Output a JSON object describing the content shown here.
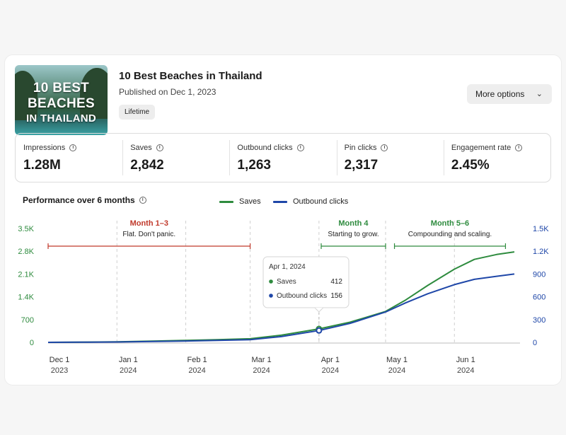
{
  "post": {
    "thumbnail_lines": [
      "10 BEST",
      "BEACHES",
      "IN THAILAND"
    ],
    "title": "10 Best Beaches in Thailand",
    "published": "Published on Dec 1, 2023",
    "range_pill": "Lifetime",
    "more_options": "More options"
  },
  "stats": [
    {
      "label": "Impressions",
      "value": "1.28M"
    },
    {
      "label": "Saves",
      "value": "2,842"
    },
    {
      "label": "Outbound clicks",
      "value": "1,263"
    },
    {
      "label": "Pin clicks",
      "value": "2,317"
    },
    {
      "label": "Engagement rate",
      "value": "2.45%"
    }
  ],
  "performance": {
    "title": "Performance over 6 months",
    "legend": [
      {
        "name": "Saves",
        "color": "#2e8b3e"
      },
      {
        "name": "Outbound clicks",
        "color": "#1f47a8"
      }
    ]
  },
  "annotations": [
    {
      "title": "Month 1–3",
      "subtitle": "Flat. Don't panic.",
      "color": "#c0392b",
      "from": "2023-12-01",
      "to": "2024-03-01"
    },
    {
      "title": "Month 4",
      "subtitle": "Starting to grow.",
      "color": "#2e8b3e",
      "from": "2024-04-02",
      "to": "2024-05-01"
    },
    {
      "title": "Month 5–6",
      "subtitle": "Compounding and scaling.",
      "color": "#2e8b3e",
      "from": "2024-05-05",
      "to": "2024-06-24"
    }
  ],
  "tooltip": {
    "date": "Apr 1, 2024",
    "rows": [
      {
        "label": "Saves",
        "value": "412",
        "color": "#2e8b3e"
      },
      {
        "label": "Outbound clicks",
        "value": "156",
        "color": "#1f47a8"
      }
    ]
  },
  "chart_data": {
    "type": "line",
    "x": [
      "2023-12-01",
      "2023-12-15",
      "2024-01-01",
      "2024-01-15",
      "2024-02-01",
      "2024-02-15",
      "2024-03-01",
      "2024-03-15",
      "2024-04-01",
      "2024-04-15",
      "2024-05-01",
      "2024-05-10",
      "2024-05-20",
      "2024-06-01",
      "2024-06-10",
      "2024-06-20",
      "2024-06-28"
    ],
    "x_ticks": [
      {
        "date": "2023-12-01",
        "line1": "Dec 1",
        "line2": "2023"
      },
      {
        "date": "2024-01-01",
        "line1": "Jan 1",
        "line2": "2024"
      },
      {
        "date": "2024-02-01",
        "line1": "Feb 1",
        "line2": "2024"
      },
      {
        "date": "2024-03-01",
        "line1": "Mar 1",
        "line2": "2024"
      },
      {
        "date": "2024-04-01",
        "line1": "Apr 1",
        "line2": "2024"
      },
      {
        "date": "2024-05-01",
        "line1": "May 1",
        "line2": "2024"
      },
      {
        "date": "2024-06-01",
        "line1": "Jun 1",
        "line2": "2024"
      }
    ],
    "series": [
      {
        "name": "Saves",
        "axis": "left",
        "color": "#2e8b3e",
        "values": [
          0,
          5,
          15,
          35,
          60,
          80,
          110,
          220,
          412,
          620,
          950,
          1300,
          1750,
          2250,
          2550,
          2700,
          2780
        ]
      },
      {
        "name": "Outbound clicks",
        "axis": "right",
        "color": "#1f47a8",
        "values": [
          0,
          2,
          5,
          10,
          18,
          25,
          35,
          75,
          156,
          250,
          400,
          520,
          640,
          760,
          830,
          870,
          900
        ]
      }
    ],
    "y_left": {
      "ylim": [
        0,
        3500
      ],
      "ticks": [
        0,
        700,
        1400,
        2100,
        2800,
        3500
      ],
      "tick_labels": [
        "0",
        "700",
        "1.4K",
        "2.1K",
        "2.8K",
        "3.5K"
      ],
      "color": "#2e8b3e"
    },
    "y_right": {
      "ylim": [
        0,
        1500
      ],
      "ticks": [
        0,
        300,
        600,
        900,
        1200,
        1500
      ],
      "tick_labels": [
        "0",
        "300",
        "600",
        "900",
        "1.2K",
        "1.5K"
      ],
      "color": "#1f47a8"
    },
    "grid": "vertical-dashed-monthly"
  }
}
